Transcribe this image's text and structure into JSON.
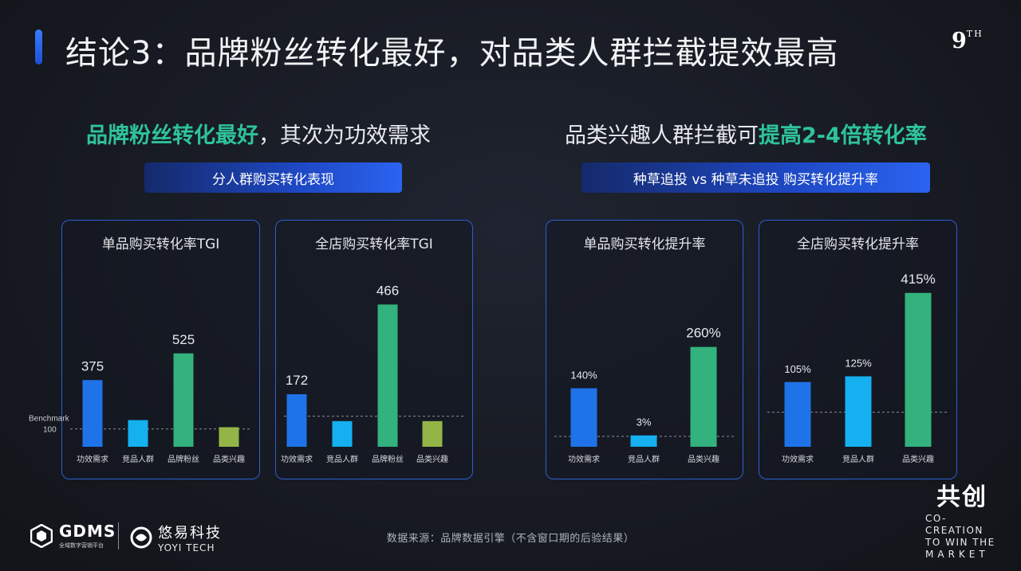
{
  "header": {
    "title": "结论3：品牌粉丝转化最好，对品类人群拦截提效最高",
    "brand_main": "9",
    "brand_sup": "TH"
  },
  "left_section": {
    "headline_highlight": "品牌粉丝转化最好",
    "headline_rest": "，其次为功效需求",
    "pill": "分人群购买转化表现"
  },
  "right_section": {
    "headline_rest": "品类兴趣人群拦截可",
    "headline_highlight": "提高2-4倍转化率",
    "pill": "种草追投 vs 种草未追投 购买转化提升率"
  },
  "colors": {
    "blue": "#1f73e8",
    "cyan": "#14b0f0",
    "green": "#33b27d",
    "olive": "#93b548",
    "highlight": "#2ec39a"
  },
  "chart_data": [
    {
      "type": "bar",
      "title": "单品购买转化率TGI",
      "categories": [
        "功效需求",
        "竞品人群",
        "品牌粉丝",
        "品类兴趣"
      ],
      "values": [
        375,
        150,
        525,
        110
      ],
      "value_labels": [
        "375",
        "",
        "525",
        ""
      ],
      "benchmark": {
        "value": 100,
        "label_line1": "Benchmark",
        "label_line2": "100"
      },
      "ylim": [
        0,
        600
      ],
      "bar_colors": [
        "blue",
        "cyan",
        "green",
        "olive"
      ]
    },
    {
      "type": "bar",
      "title": "全店购买转化率TGI",
      "categories": [
        "功效需求",
        "竞品人群",
        "品牌粉丝",
        "品类兴趣"
      ],
      "values": [
        172,
        84,
        466,
        84
      ],
      "value_labels": [
        "172",
        "",
        "466",
        ""
      ],
      "benchmark": {
        "value": 100,
        "label_line1": "",
        "label_line2": ""
      },
      "ylim": [
        0,
        480
      ],
      "bar_colors": [
        "blue",
        "cyan",
        "green",
        "olive"
      ]
    },
    {
      "type": "bar",
      "title": "单品购买转化提升率",
      "categories": [
        "功效需求",
        "竞品人群",
        "品类兴趣"
      ],
      "values": [
        140,
        3,
        260
      ],
      "value_labels": [
        "140%",
        "3%",
        "260%"
      ],
      "benchmark": {
        "value": 0,
        "label_line1": "",
        "label_line2": ""
      },
      "ylim": [
        -30,
        280
      ],
      "bar_colors": [
        "blue",
        "cyan",
        "green"
      ]
    },
    {
      "type": "bar",
      "title": "全店购买转化提升率",
      "categories": [
        "功效需求",
        "竞品人群",
        "品类兴趣"
      ],
      "values": [
        105,
        125,
        415
      ],
      "value_labels": [
        "105%",
        "125%",
        "415%"
      ],
      "benchmark": {
        "value": 0,
        "label_line1": "",
        "label_line2": ""
      },
      "ylim": [
        -120,
        420
      ],
      "bar_colors": [
        "blue",
        "cyan",
        "green"
      ]
    }
  ],
  "footer": {
    "gdms": "GDMS",
    "gdms_sub": "全域数字营销平台",
    "yoyi_cn": "悠易科技",
    "yoyi_en": "YOYI TECH",
    "source": "数据来源：品牌数据引擎（不含窗口期的后验结果）",
    "cocreate_mark": "共创",
    "cocreate_lines": [
      "CO-CREATION",
      "TO WIN THE",
      "MARKET"
    ]
  }
}
